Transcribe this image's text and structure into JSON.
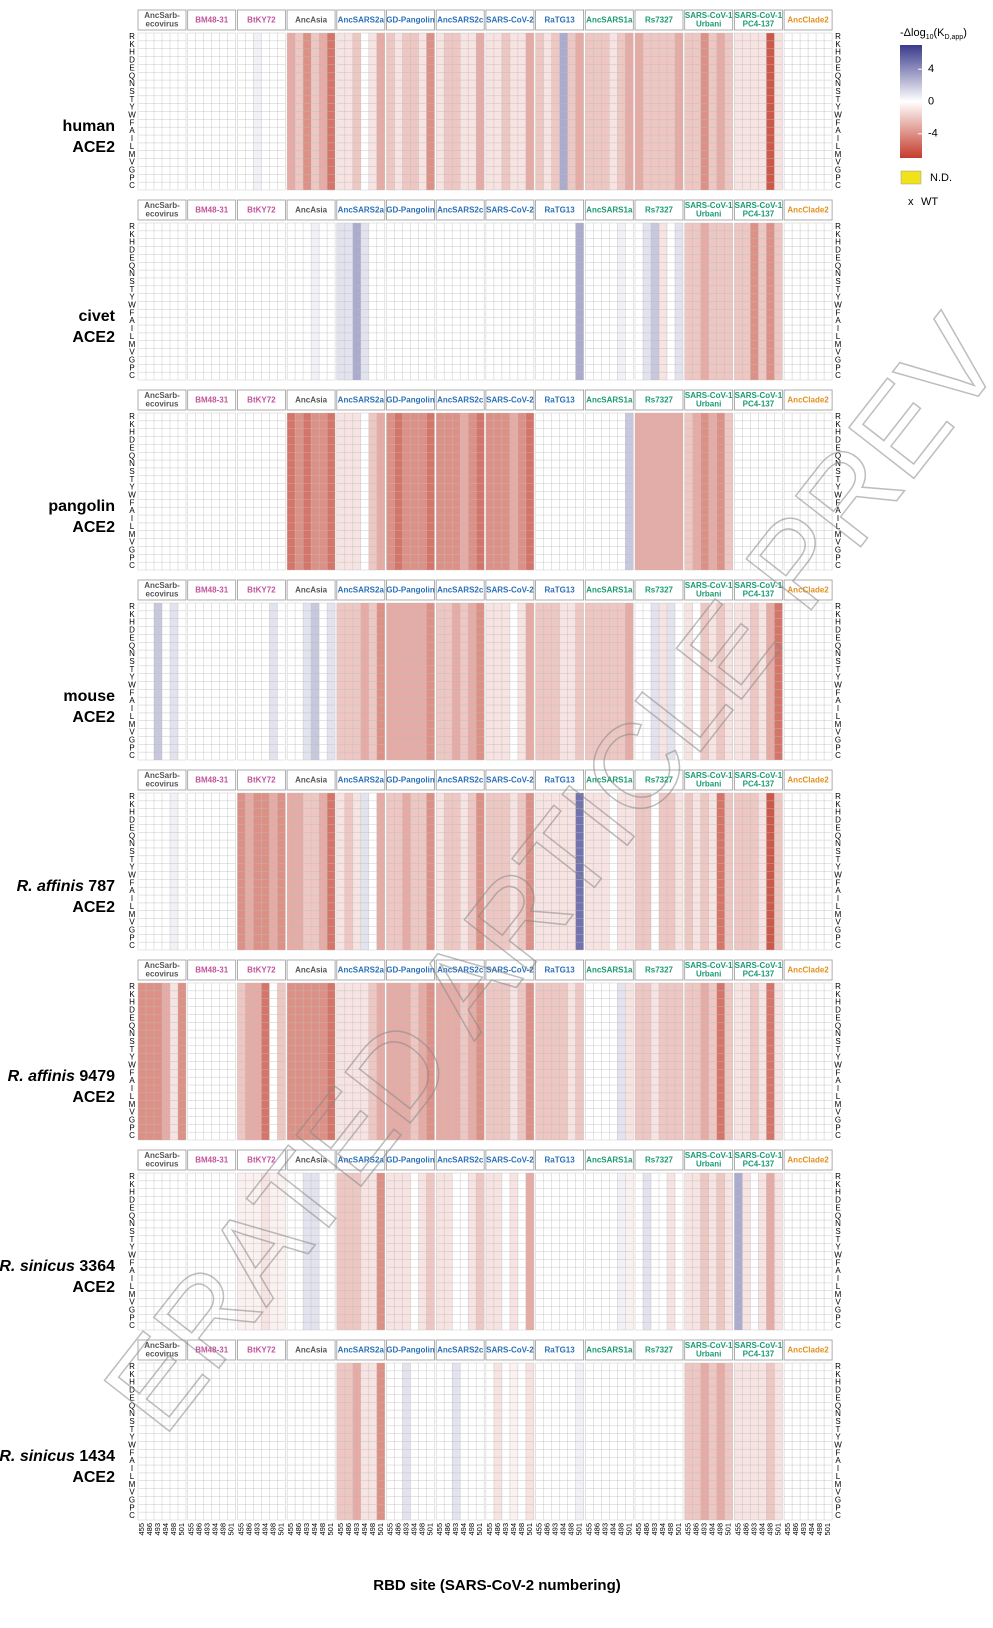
{
  "chart_data": {
    "type": "heatmap",
    "x_label": "RBD site (SARS-CoV-2 numbering)",
    "sites": [
      "455",
      "486",
      "493",
      "494",
      "498",
      "501"
    ],
    "amino_acids": [
      "R",
      "K",
      "H",
      "D",
      "E",
      "Q",
      "N",
      "S",
      "T",
      "Y",
      "W",
      "F",
      "A",
      "I",
      "L",
      "M",
      "V",
      "G",
      "P",
      "C"
    ],
    "panels": [
      {
        "lines": [
          "AncSarb-",
          "ecovirus"
        ],
        "color": "#555555"
      },
      {
        "lines": [
          "BM48-31"
        ],
        "color": "#c2559b"
      },
      {
        "lines": [
          "BtKY72"
        ],
        "color": "#c2559b"
      },
      {
        "lines": [
          "AncAsia"
        ],
        "color": "#555555"
      },
      {
        "lines": [
          "AncSARS2a"
        ],
        "color": "#2a6fb8"
      },
      {
        "lines": [
          "GD-Pangolin"
        ],
        "color": "#2a6fb8"
      },
      {
        "lines": [
          "AncSARS2c"
        ],
        "color": "#2a6fb8"
      },
      {
        "lines": [
          "SARS-CoV-2"
        ],
        "color": "#2a6fb8"
      },
      {
        "lines": [
          "RaTG13"
        ],
        "color": "#2a6fb8"
      },
      {
        "lines": [
          "AncSARS1a"
        ],
        "color": "#1a9a73"
      },
      {
        "lines": [
          "Rs7327"
        ],
        "color": "#1a9a73"
      },
      {
        "lines": [
          "SARS-CoV-1",
          "Urbani"
        ],
        "color": "#1a9a73"
      },
      {
        "lines": [
          "SARS-CoV-1",
          "PC4-137"
        ],
        "color": "#1a9a73"
      },
      {
        "lines": [
          "AncClade2"
        ],
        "color": "#e3901e"
      }
    ],
    "species": [
      {
        "name": "human",
        "receptor": "ACE2",
        "values": [
          [
            0,
            0,
            0,
            0,
            0,
            0
          ],
          [
            0,
            0,
            0,
            0,
            0,
            0
          ],
          [
            0,
            0,
            0.5,
            0,
            0,
            0
          ],
          [
            -3,
            -2,
            -4,
            -2,
            -3,
            -5
          ],
          [
            -1,
            -1,
            -2,
            0,
            -1,
            -3
          ],
          [
            -2,
            -1,
            -2,
            -2,
            -1,
            -4
          ],
          [
            -1,
            -2,
            -2,
            -1,
            -1,
            -3
          ],
          [
            -1,
            -1,
            -2,
            -1,
            -1,
            -3
          ],
          [
            -2,
            -1,
            -2,
            3,
            -2,
            -3
          ],
          [
            -2,
            -2,
            -2,
            -1,
            -2,
            -3
          ],
          [
            -3,
            -2,
            -2,
            -2,
            -2,
            -3
          ],
          [
            -2,
            -2,
            -4,
            -2,
            -3,
            -2
          ],
          [
            -1,
            -1,
            -1,
            -1,
            -6,
            -1
          ],
          [
            0,
            0,
            0,
            0,
            0,
            0
          ]
        ]
      },
      {
        "name": "civet",
        "receptor": "ACE2",
        "values": [
          [
            0,
            0,
            0,
            0,
            0,
            0
          ],
          [
            0,
            0,
            0,
            0,
            0,
            0
          ],
          [
            0,
            0,
            0,
            0,
            0,
            0
          ],
          [
            0,
            0,
            0,
            0.5,
            0,
            0
          ],
          [
            1,
            1,
            3,
            1,
            0,
            0
          ],
          [
            0,
            0,
            0,
            0,
            0,
            0
          ],
          [
            0,
            0,
            0,
            0,
            0,
            0
          ],
          [
            0,
            0,
            0,
            0,
            0,
            0
          ],
          [
            0,
            0,
            0,
            0,
            0,
            3
          ],
          [
            0,
            0,
            0,
            0,
            0.5,
            0
          ],
          [
            0,
            1,
            2,
            -1,
            0,
            1
          ],
          [
            -2,
            -2,
            -3,
            -2,
            -2,
            -2
          ],
          [
            -2,
            -2,
            -4,
            -2,
            -4,
            -2
          ],
          [
            0,
            0,
            0,
            0,
            0,
            0
          ]
        ]
      },
      {
        "name": "pangolin",
        "receptor": "ACE2",
        "values": [
          [
            0,
            0,
            0,
            0,
            0,
            0
          ],
          [
            0,
            0,
            0,
            0,
            0,
            0
          ],
          [
            0,
            0,
            0,
            0,
            0,
            0
          ],
          [
            -5,
            -4,
            -5,
            -4,
            -4,
            -5
          ],
          [
            -1,
            -1,
            -1,
            0,
            -2,
            -3
          ],
          [
            -4,
            -5,
            -4,
            -4,
            -4,
            -5
          ],
          [
            -4,
            -4,
            -4,
            -3,
            -4,
            -5
          ],
          [
            -4,
            -4,
            -4,
            -3,
            -4,
            -5
          ],
          [
            0,
            0,
            0,
            0,
            0,
            0
          ],
          [
            0,
            0,
            0,
            0,
            0,
            2
          ],
          [
            -3,
            -3,
            -3,
            -3,
            -3,
            -3
          ],
          [
            -2,
            -3,
            -4,
            -3,
            -4,
            -2
          ],
          [
            0,
            0,
            0,
            0,
            0,
            0
          ],
          [
            0,
            0,
            0,
            0,
            0,
            0
          ]
        ]
      },
      {
        "name": "mouse",
        "receptor": "ACE2",
        "values": [
          [
            0,
            0,
            2,
            0,
            1,
            0
          ],
          [
            0,
            0,
            0,
            0,
            0,
            0
          ],
          [
            0,
            0,
            0,
            0,
            1,
            0
          ],
          [
            0,
            0,
            1,
            2,
            0,
            1
          ],
          [
            -2,
            -2,
            -2,
            -3,
            -2,
            -4
          ],
          [
            -3,
            -3,
            -3,
            -3,
            -3,
            -4
          ],
          [
            -2,
            -2,
            -3,
            -2,
            -3,
            -4
          ],
          [
            -1,
            -1,
            -1,
            0,
            -1,
            -3
          ],
          [
            -2,
            -2,
            -2,
            -1,
            -1,
            -2
          ],
          [
            -2,
            -2,
            -2,
            -2,
            -2,
            -3
          ],
          [
            0,
            0,
            1,
            -1,
            1,
            0
          ],
          [
            -1,
            0,
            -2,
            -1,
            -2,
            -1
          ],
          [
            -1,
            -1,
            -2,
            -1,
            -3,
            -5
          ],
          [
            0,
            0,
            0,
            0,
            0,
            0
          ]
        ]
      },
      {
        "name_italic": "R. affinis",
        "name": " 787",
        "receptor": "ACE2",
        "values": [
          [
            0,
            0,
            0,
            0,
            0.5,
            0
          ],
          [
            0,
            0,
            0,
            0,
            0,
            0
          ],
          [
            -4,
            -3,
            -4,
            -4,
            -3,
            -4
          ],
          [
            -3,
            -3,
            -2,
            -2,
            -3,
            -5
          ],
          [
            -1,
            -2,
            -1,
            1,
            0,
            -3
          ],
          [
            -2,
            -2,
            -3,
            -2,
            -2,
            -4
          ],
          [
            -1,
            -2,
            -2,
            -1,
            -2,
            -4
          ],
          [
            -2,
            -2,
            -2,
            -1,
            -2,
            -4
          ],
          [
            -1,
            -1,
            -1,
            -1,
            -1,
            5
          ],
          [
            -1,
            -1,
            -1,
            0,
            -1,
            -1
          ],
          [
            -2,
            -2,
            0,
            -2,
            -2,
            -1
          ],
          [
            -2,
            -1,
            -2,
            -1,
            -5,
            -2
          ],
          [
            -2,
            -2,
            -2,
            -1,
            -6,
            -2
          ],
          [
            0,
            0,
            0,
            0,
            0,
            0
          ]
        ]
      },
      {
        "name_italic": "R. affinis",
        "name": " 9479",
        "receptor": "ACE2",
        "values": [
          [
            -4,
            -4,
            -4,
            -3,
            -1,
            -4
          ],
          [
            0,
            0,
            0,
            0,
            0,
            0
          ],
          [
            -2,
            -3,
            -3,
            -5,
            0,
            -2
          ],
          [
            -4,
            -4,
            -4,
            -4,
            -4,
            -5
          ],
          [
            -1,
            -1,
            -1,
            -1,
            -2,
            -3
          ],
          [
            -3,
            -3,
            -3,
            -2,
            -3,
            -4
          ],
          [
            -3,
            -3,
            -3,
            -2,
            -3,
            -4
          ],
          [
            -2,
            -2,
            -2,
            -1,
            -2,
            -4
          ],
          [
            -2,
            -2,
            -2,
            -2,
            -1,
            -2
          ],
          [
            0,
            0,
            0,
            0,
            1,
            -1
          ],
          [
            -2,
            -2,
            -1,
            -2,
            -2,
            -2
          ],
          [
            -2,
            -2,
            -3,
            -2,
            -5,
            -2
          ],
          [
            -1,
            -1,
            -2,
            -1,
            -5,
            -1
          ],
          [
            0,
            0,
            0,
            0,
            0,
            0
          ]
        ]
      },
      {
        "name_italic": "R. sinicus",
        "name": " 3364",
        "receptor": "ACE2",
        "values": [
          [
            0,
            0,
            0,
            0,
            0,
            0
          ],
          [
            0,
            0,
            0,
            0,
            0,
            0
          ],
          [
            -0.5,
            -0.5,
            -0.5,
            -1,
            -0.5,
            -0.5
          ],
          [
            0,
            0,
            1,
            1,
            0,
            0
          ],
          [
            -2,
            -2,
            -2,
            -1,
            -1,
            -4
          ],
          [
            -1,
            -1,
            -1,
            0,
            -1,
            -2
          ],
          [
            -1,
            -1,
            0,
            0,
            -1,
            -2
          ],
          [
            -1,
            -1,
            0,
            -1,
            0,
            -3
          ],
          [
            0,
            0,
            0,
            0,
            0,
            0
          ],
          [
            0,
            0,
            0,
            0,
            0.5,
            -0.5
          ],
          [
            0,
            1,
            0,
            0,
            -1,
            0
          ],
          [
            -1,
            -1,
            -2,
            -1,
            -2,
            -1
          ],
          [
            3,
            -1,
            0,
            -1,
            -3,
            -1
          ],
          [
            0,
            0,
            0,
            0,
            0,
            0
          ]
        ]
      },
      {
        "name_italic": "R. sinicus",
        "name": " 1434",
        "receptor": "ACE2",
        "values": [
          [
            0,
            0,
            0,
            0,
            0,
            0
          ],
          [
            0,
            0,
            0,
            0,
            0,
            0
          ],
          [
            0,
            0,
            0,
            0,
            0,
            0
          ],
          [
            0,
            0,
            0,
            0,
            0,
            0
          ],
          [
            -2,
            -2,
            -3,
            -1,
            -1,
            -4
          ],
          [
            0,
            0,
            1,
            0,
            0,
            0
          ],
          [
            0,
            0,
            1,
            0,
            0,
            0
          ],
          [
            0,
            -1,
            0,
            -0.5,
            0,
            -1
          ],
          [
            0,
            0,
            0,
            0,
            0,
            0.5
          ],
          [
            0,
            0,
            0,
            0,
            0,
            0
          ],
          [
            0,
            0,
            0,
            0,
            0,
            0
          ],
          [
            -2,
            -2,
            -3,
            -2,
            -3,
            -2
          ],
          [
            -1,
            -1,
            -1,
            -1,
            -2,
            -1
          ],
          [
            0,
            0,
            0,
            0,
            0,
            0
          ]
        ]
      }
    ],
    "clim": [
      -7,
      7
    ],
    "colorbar_ticks": [
      4,
      0,
      -4
    ],
    "colors": {
      "low": "#c43c2c",
      "mid": "#ffffff",
      "high": "#3a3a8c",
      "nd": "#f2e21b"
    },
    "legend": {
      "prefix": "-Δlog",
      "sub1": "10",
      "mid": "(K",
      "sub2": "D,app",
      "suffix": ")",
      "nd_label": "N.D.",
      "wt_symbol": "x",
      "wt_label": "WT"
    },
    "watermark": "ERATED ARTICLE PREV"
  }
}
